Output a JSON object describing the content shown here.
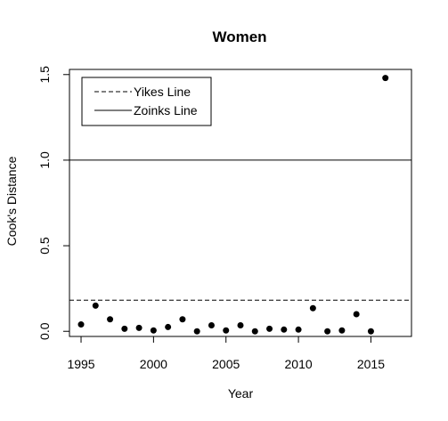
{
  "chart_data": {
    "type": "scatter",
    "title": "Women",
    "xlabel": "Year",
    "ylabel": "Cook's Distance",
    "xlim": [
      1994.2,
      2017.8
    ],
    "ylim": [
      -0.03,
      1.53
    ],
    "x_ticks": [
      1995,
      2000,
      2005,
      2010,
      2015
    ],
    "y_ticks": [
      0.0,
      0.5,
      1.0,
      1.5
    ],
    "x_tick_labels": [
      "1995",
      "2000",
      "2005",
      "2010",
      "2015"
    ],
    "y_tick_labels": [
      "0.0",
      "0.5",
      "1.0",
      "1.5"
    ],
    "grid": false,
    "legend_position": "top-left",
    "reference_lines": [
      {
        "name": "Yikes Line",
        "y": 0.182,
        "style": "dashed"
      },
      {
        "name": "Zoinks Line",
        "y": 1.0,
        "style": "solid"
      }
    ],
    "series": [
      {
        "marker": "filled-circle",
        "color": "#000000",
        "points": [
          {
            "x": 1995,
            "y": 0.04
          },
          {
            "x": 1996,
            "y": 0.15
          },
          {
            "x": 1997,
            "y": 0.07
          },
          {
            "x": 1998,
            "y": 0.015
          },
          {
            "x": 1999,
            "y": 0.02
          },
          {
            "x": 2000,
            "y": 0.005
          },
          {
            "x": 2001,
            "y": 0.025
          },
          {
            "x": 2002,
            "y": 0.07
          },
          {
            "x": 2003,
            "y": 0.0
          },
          {
            "x": 2004,
            "y": 0.035
          },
          {
            "x": 2005,
            "y": 0.005
          },
          {
            "x": 2006,
            "y": 0.035
          },
          {
            "x": 2007,
            "y": 0.0
          },
          {
            "x": 2008,
            "y": 0.015
          },
          {
            "x": 2009,
            "y": 0.01
          },
          {
            "x": 2010,
            "y": 0.01
          },
          {
            "x": 2011,
            "y": 0.135
          },
          {
            "x": 2012,
            "y": 0.0
          },
          {
            "x": 2013,
            "y": 0.005
          },
          {
            "x": 2014,
            "y": 0.1
          },
          {
            "x": 2015,
            "y": 0.0
          },
          {
            "x": 2016,
            "y": 1.48
          }
        ]
      }
    ]
  }
}
